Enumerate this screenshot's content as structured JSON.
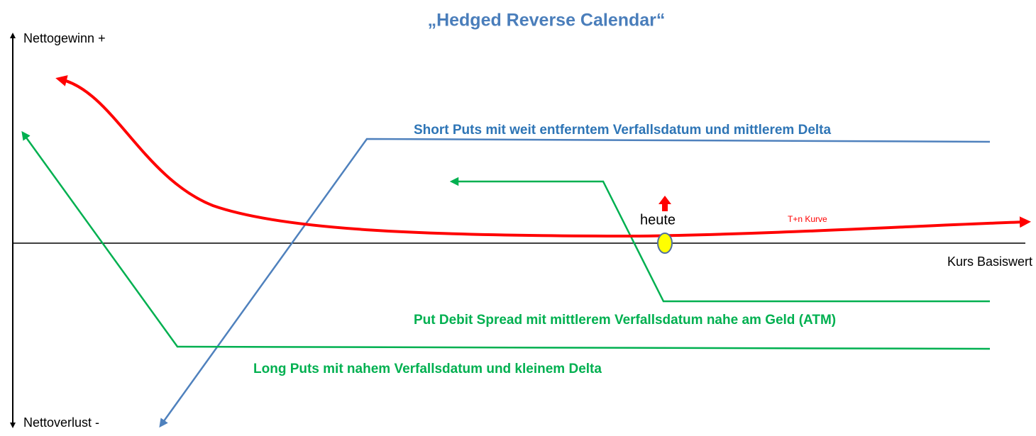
{
  "title": "„Hedged Reverse Calendar“",
  "axes": {
    "y_top": "Nettogewinn +",
    "y_bottom": "Nettoverlust -",
    "x": "Kurs Basiswert"
  },
  "curves": {
    "short_puts": "Short Puts mit weit entferntem Verfallsdatum und mittlerem Delta",
    "put_debit_spread": "Put Debit Spread mit mittlerem Verfallsdatum nahe am Geld (ATM)",
    "long_puts": "Long Puts mit nahem Verfallsdatum und kleinem Delta",
    "t_plus_n": "T+n Kurve"
  },
  "marker": "heute"
}
